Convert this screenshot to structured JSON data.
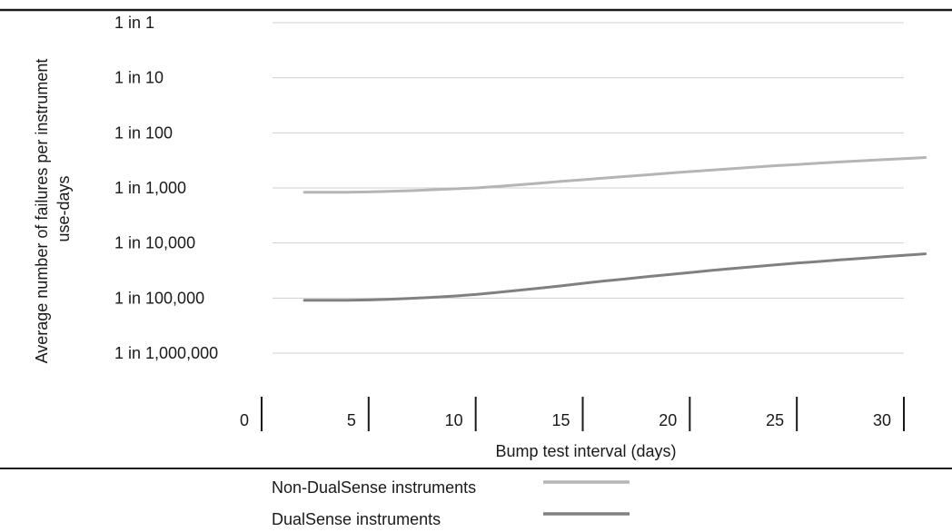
{
  "chart_data": {
    "type": "line",
    "title": "",
    "xlabel": "Bump test interval (days)",
    "ylabel_lines": [
      "Average number of failures per instrument",
      "use-days"
    ],
    "x_ticks": [
      0,
      5,
      10,
      15,
      20,
      25,
      30
    ],
    "xlim": [
      0,
      30
    ],
    "y_scale": "log",
    "y_ticks": [
      {
        "value": 1,
        "label": "1 in 1"
      },
      {
        "value": 10,
        "label": "1 in 10"
      },
      {
        "value": 100,
        "label": "1 in 100"
      },
      {
        "value": 1000,
        "label": "1 in 1,000"
      },
      {
        "value": 10000,
        "label": "1 in 10,000"
      },
      {
        "value": 100000,
        "label": "1 in 100,000"
      },
      {
        "value": 1000000,
        "label": "1 in 1,000,000"
      }
    ],
    "ylim": [
      1,
      1000000
    ],
    "grid": "horizontal",
    "legend_position": "bottom",
    "series": [
      {
        "name": "Non-DualSense instruments",
        "color": "#b5b5b5",
        "x": [
          2,
          3,
          4,
          5,
          6,
          7,
          8,
          9,
          10,
          11,
          12,
          13,
          14,
          15,
          16,
          17,
          18,
          19,
          20,
          21,
          22,
          23,
          24,
          25,
          26,
          27,
          28,
          29,
          30,
          31
        ],
        "y": [
          1200,
          1200,
          1200,
          1180,
          1150,
          1120,
          1080,
          1040,
          1000,
          940,
          880,
          820,
          760,
          710,
          660,
          620,
          580,
          540,
          505,
          475,
          445,
          420,
          395,
          375,
          355,
          338,
          322,
          307,
          293,
          280
        ]
      },
      {
        "name": "DualSense instruments",
        "color": "#808080",
        "x": [
          2,
          3,
          4,
          5,
          6,
          7,
          8,
          9,
          10,
          11,
          12,
          13,
          14,
          15,
          16,
          17,
          18,
          19,
          20,
          21,
          22,
          23,
          24,
          25,
          26,
          27,
          28,
          29,
          30,
          31
        ],
        "y": [
          110000,
          110000,
          110000,
          108000,
          105000,
          101000,
          97000,
          92000,
          86000,
          79000,
          72000,
          66000,
          60000,
          54000,
          49000,
          45000,
          41000,
          37500,
          34500,
          31500,
          29000,
          27000,
          25000,
          23200,
          21700,
          20300,
          19000,
          17800,
          16700,
          15700
        ]
      }
    ]
  }
}
